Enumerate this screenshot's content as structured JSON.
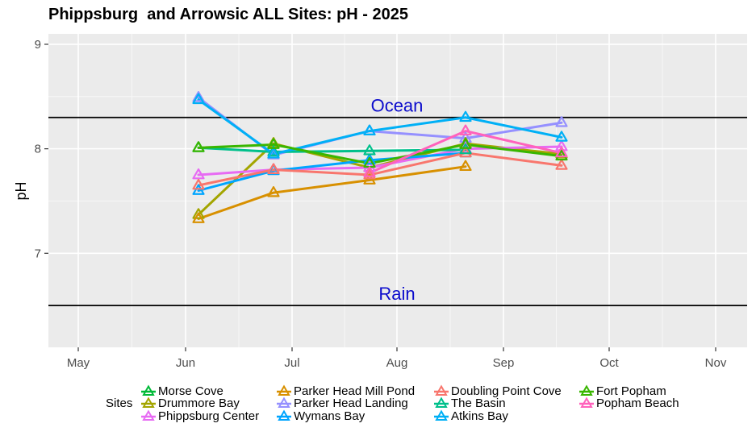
{
  "chart_data": {
    "type": "line",
    "title": "Phippsburg  and Arrowsic ALL Sites: pH - 2025",
    "xlabel": "",
    "ylabel": "pH",
    "x_tick_labels": [
      "May",
      "Jun",
      "Jul",
      "Aug",
      "Sep",
      "Oct",
      "Nov"
    ],
    "y_ticks": [
      7,
      8,
      9
    ],
    "ylim": [
      6.1,
      9.1
    ],
    "grid": true,
    "reference_lines": [
      {
        "label": "Ocean",
        "value": 8.3,
        "color": "#000000"
      },
      {
        "label": "Rain",
        "value": 6.5,
        "color": "#000000"
      }
    ],
    "x_dates": [
      "Jun 5",
      "Jun 30",
      "Jul 27",
      "Aug 22",
      "Sep 17"
    ],
    "legend_title": "Sites",
    "legend_position": "bottom",
    "series": [
      {
        "name": "Morse Cove",
        "color": "#00ba38",
        "values": [
          null,
          null,
          null,
          null,
          null
        ]
      },
      {
        "name": "Drummore Bay",
        "color": "#a3a500",
        "values": [
          7.37,
          8.05,
          7.82,
          8.05,
          7.95
        ]
      },
      {
        "name": "Phippsburg Center",
        "color": "#e76bf3",
        "values": [
          7.75,
          7.8,
          7.82,
          8.0,
          8.02
        ]
      },
      {
        "name": "Parker Head Mill Pond",
        "color": "#d89000",
        "values": [
          7.33,
          7.58,
          7.7,
          7.83,
          null
        ]
      },
      {
        "name": "Parker Head Landing",
        "color": "#9590ff",
        "values": [
          8.49,
          7.94,
          8.17,
          8.1,
          8.25
        ]
      },
      {
        "name": "Wymans Bay",
        "color": "#00a5ff",
        "values": [
          7.6,
          7.79,
          7.89,
          7.96,
          null
        ]
      },
      {
        "name": "Doubling Point Cove",
        "color": "#f8766d",
        "values": [
          7.65,
          7.8,
          7.75,
          7.96,
          7.84
        ]
      },
      {
        "name": "The Basin",
        "color": "#00c08b",
        "values": [
          8.01,
          7.97,
          7.98,
          7.99,
          null
        ]
      },
      {
        "name": "Atkins Bay",
        "color": "#00b0f6",
        "values": [
          8.47,
          7.95,
          8.17,
          8.3,
          8.11
        ]
      },
      {
        "name": "Fort Popham",
        "color": "#39b600",
        "values": [
          8.01,
          8.04,
          7.86,
          8.04,
          7.93
        ]
      },
      {
        "name": "Popham Beach",
        "color": "#ff62bc",
        "values": [
          null,
          null,
          7.77,
          8.17,
          7.96
        ]
      }
    ]
  }
}
